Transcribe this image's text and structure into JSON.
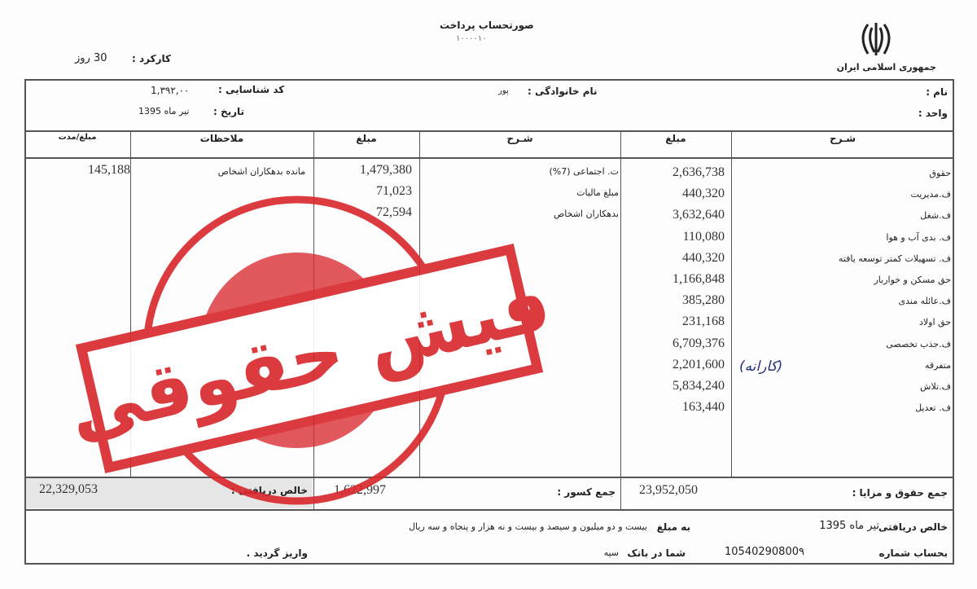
{
  "header": {
    "title": "صورتحساب پرداخت",
    "subtitle": "۱۰۰۰۰۱۰",
    "emblem_caption": "جمهوری اسلامی ایران",
    "work_days_label": "کارکرد :",
    "work_days_value": "30 روز"
  },
  "info": {
    "name_label": "نام :",
    "unit_label": "واحد :",
    "family_label": "نام خانوادگی :",
    "family_value": "پور",
    "id_label": "کد شناسایی :",
    "id_value": "1,۳۹۲,۰۰",
    "date_label": "تاریخ :",
    "date_value": "تیر ماه 1395"
  },
  "columns": {
    "earn_desc": "شـرح",
    "earn_amount": "مبلغ",
    "ded_desc": "شـرح",
    "ded_amount": "مبلغ",
    "notes": "ملاحظات",
    "balance": "مبلغ/مدت"
  },
  "earnings": [
    {
      "label": "حقوق",
      "amount": "2,636,738"
    },
    {
      "label": "ف.مدیریت",
      "amount": "440,320"
    },
    {
      "label": "ف.شغل",
      "amount": "3,632,640"
    },
    {
      "label": "ف. بدی آب و هوا",
      "amount": "110,080"
    },
    {
      "label": "ف. تسهیلات کمتر توسعه یافته",
      "amount": "440,320"
    },
    {
      "label": "حق مسکن و خواربار",
      "amount": "1,166,848"
    },
    {
      "label": "ف.عائله مندی",
      "amount": "385,280"
    },
    {
      "label": "حق اولاد",
      "amount": "231,168"
    },
    {
      "label": "ف.جذب تخصصی",
      "amount": "6,709,376"
    },
    {
      "label": "متفرقه",
      "amount": "2,201,600"
    },
    {
      "label": "ف.تلاش",
      "amount": "5,834,240"
    },
    {
      "label": "ف. تعدیل",
      "amount": "163,440"
    }
  ],
  "handwritten_note": "(کارانه)",
  "deductions": [
    {
      "label": "ت. اجتماعی (7%)",
      "amount": "1,479,380"
    },
    {
      "label": "مبلغ مالیات",
      "amount": "71,023"
    },
    {
      "label": "بدهکاران اشخاص",
      "amount": "72,594"
    }
  ],
  "notes": [
    {
      "text": "مانده بدهکاران اشخاص",
      "balance": "145,188"
    }
  ],
  "totals": {
    "earnings_label": "جمع حقوق و مزایا :",
    "earnings_value": "23,952,050",
    "deductions_label": "جمع کسور :",
    "deductions_value": "1,622,997",
    "net_label": "خالص دریافتی :",
    "net_value": "22,329,053"
  },
  "footer": {
    "net_label": "خالص دریافتی",
    "month": "تیر ماه 1395",
    "amount_label": "به مبلغ",
    "amount_words": "بیست و دو میلیون و سیصد و بیست و نه هزار و پنجاه و سه ریال",
    "account_label": "بحساب شماره",
    "account_number": "10540290800۹",
    "bank_label": "شما در بانک",
    "bank_name": "سپه",
    "deposited": "واریز گردید ."
  },
  "stamp": {
    "text": "فیش حقوقی",
    "color": "#d8272b"
  }
}
